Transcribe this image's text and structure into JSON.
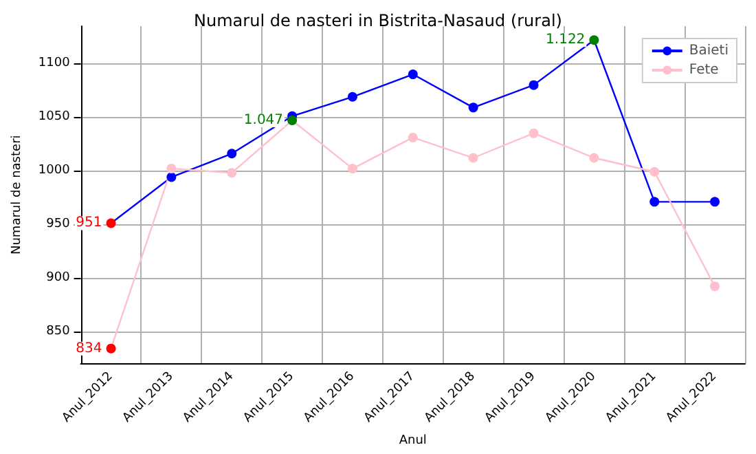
{
  "chart_data": {
    "type": "line",
    "title": "Numarul de nasteri in Bistrita-Nasaud (rural)",
    "xlabel": "Anul",
    "ylabel": "Numarul de nasteri",
    "categories": [
      "Anul_2012",
      "Anul_2013",
      "Anul_2014",
      "Anul_2015",
      "Anul_2016",
      "Anul_2017",
      "Anul_2018",
      "Anul_2019",
      "Anul_2020",
      "Anul_2021",
      "Anul_2022"
    ],
    "series": [
      {
        "name": "Baieti",
        "color": "#0000ff",
        "values": [
          951,
          994,
          1016,
          1051,
          1069,
          1090,
          1059,
          1080,
          1122,
          971,
          971
        ],
        "colors": [
          "#ff0000",
          "#0000ff",
          "#0000ff",
          "#0000ff",
          "#0000ff",
          "#0000ff",
          "#0000ff",
          "#0000ff",
          "#008000",
          "#0000ff",
          "#0000ff"
        ],
        "value_labels": [
          "951",
          null,
          null,
          null,
          null,
          null,
          null,
          null,
          "1.122",
          null,
          null
        ]
      },
      {
        "name": "Fete",
        "color": "#ffc0cb",
        "values": [
          834,
          1002,
          998,
          1047,
          1002,
          1031,
          1012,
          1035,
          1012,
          999,
          892
        ],
        "colors": [
          "#ff0000",
          "#ffc0cb",
          "#ffc0cb",
          "#008000",
          "#ffc0cb",
          "#ffc0cb",
          "#ffc0cb",
          "#ffc0cb",
          "#ffc0cb",
          "#ffc0cb",
          "#ffc0cb"
        ],
        "value_labels": [
          "834",
          null,
          null,
          "1.047",
          null,
          null,
          null,
          null,
          null,
          null,
          null
        ]
      }
    ],
    "ylim": [
      820,
      1135
    ],
    "yticks": [
      850,
      900,
      950,
      1000,
      1050,
      1100
    ],
    "grid": true,
    "legend": "top right",
    "marker": "circle",
    "line_style": "solid"
  }
}
